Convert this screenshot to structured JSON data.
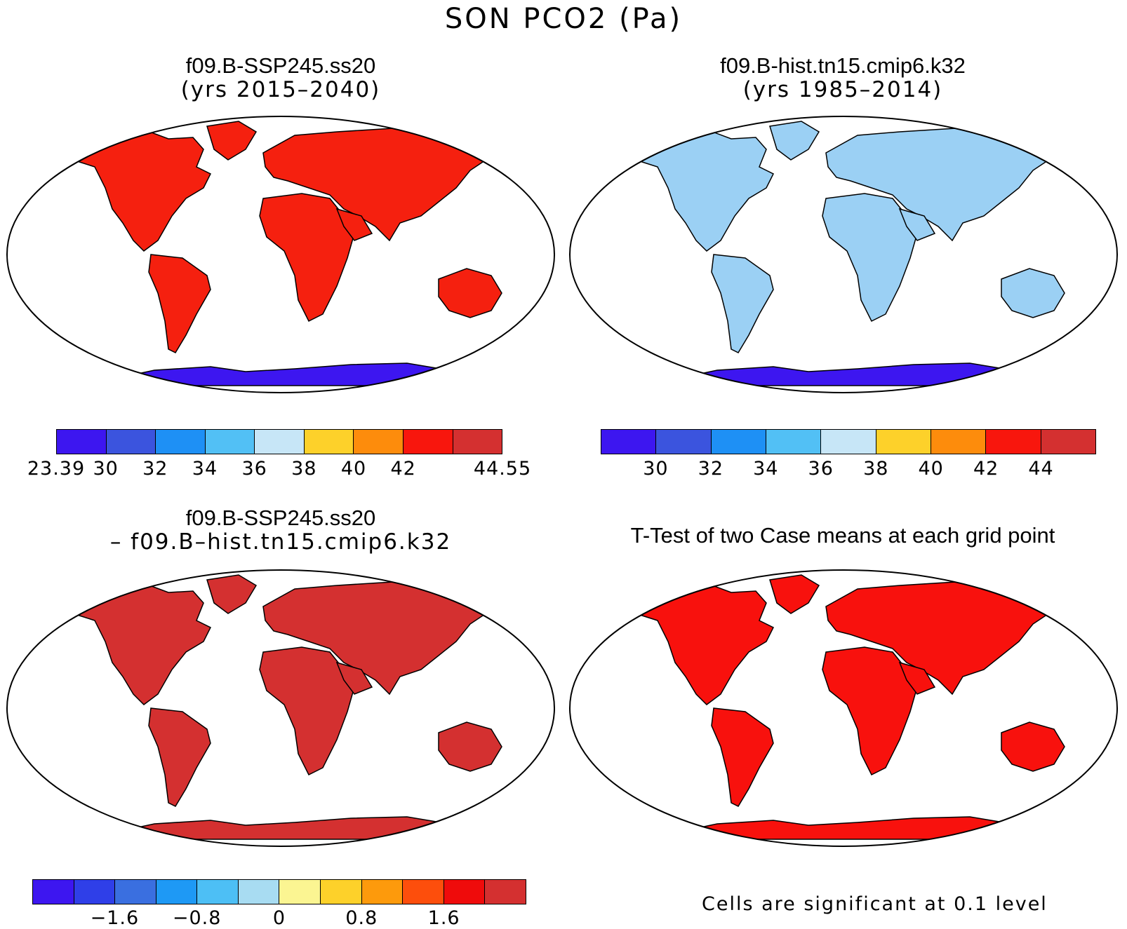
{
  "title": "SON PCO2 (Pa)",
  "panels": [
    {
      "id": "p1",
      "title": "f09.B-SSP245.ss20",
      "subtitle": "(yrs 2015–2040)"
    },
    {
      "id": "p2",
      "title": "f09.B-hist.tn15.cmip6.k32",
      "subtitle": "(yrs 1985–2014)"
    },
    {
      "id": "p3",
      "title": "f09.B-SSP245.ss20",
      "subtitle": "– f09.B–hist.tn15.cmip6.k32"
    },
    {
      "id": "p4",
      "title": "T-Test of two Case means at each grid point",
      "subtitle": ""
    }
  ],
  "colorbars": {
    "case1": {
      "colors": [
        "#3d16f0",
        "#3b54de",
        "#1e90f5",
        "#52c0f5",
        "#c7e6f7",
        "#fdd12a",
        "#fd8c0c",
        "#f8160d",
        "#d43030"
      ],
      "labels": [
        {
          "text": "23.39",
          "pos": 0.0
        },
        {
          "text": "30",
          "pos": 0.1111
        },
        {
          "text": "32",
          "pos": 0.2222
        },
        {
          "text": "34",
          "pos": 0.3333
        },
        {
          "text": "36",
          "pos": 0.4444
        },
        {
          "text": "38",
          "pos": 0.5556
        },
        {
          "text": "40",
          "pos": 0.6667
        },
        {
          "text": "42",
          "pos": 0.7778
        },
        {
          "text": "44.55",
          "pos": 1.0
        }
      ]
    },
    "case2": {
      "colors": [
        "#3d16f0",
        "#3b54de",
        "#1e90f5",
        "#52c0f5",
        "#c7e6f7",
        "#fdd12a",
        "#fd8c0c",
        "#f8160d",
        "#d43030"
      ],
      "labels": [
        {
          "text": "30",
          "pos": 0.1111
        },
        {
          "text": "32",
          "pos": 0.2222
        },
        {
          "text": "34",
          "pos": 0.3333
        },
        {
          "text": "36",
          "pos": 0.4444
        },
        {
          "text": "38",
          "pos": 0.5556
        },
        {
          "text": "40",
          "pos": 0.6667
        },
        {
          "text": "42",
          "pos": 0.7778
        },
        {
          "text": "44",
          "pos": 0.8889
        }
      ]
    },
    "diff": {
      "colors": [
        "#3d16f0",
        "#2f3fe8",
        "#3a6fe0",
        "#1e99f5",
        "#4dbff5",
        "#a8dcf2",
        "#fbf592",
        "#fdd12a",
        "#fd9a0c",
        "#fd4e0c",
        "#ef0b0b",
        "#d43030"
      ],
      "labels": [
        {
          "text": "−1.6",
          "pos": 0.1667
        },
        {
          "text": "−0.8",
          "pos": 0.3333
        },
        {
          "text": "0",
          "pos": 0.5
        },
        {
          "text": "0.8",
          "pos": 0.6667
        },
        {
          "text": "1.6",
          "pos": 0.8333
        }
      ]
    }
  },
  "colors": {
    "land_warm": "#f5200f",
    "land_diff": "#d43030",
    "land_ttest": "#f8110d",
    "land_cool": "#9bd0f4",
    "antarctica_low": "#3d16f0"
  },
  "ttest_note": "Cells are significant at 0.1 level"
}
